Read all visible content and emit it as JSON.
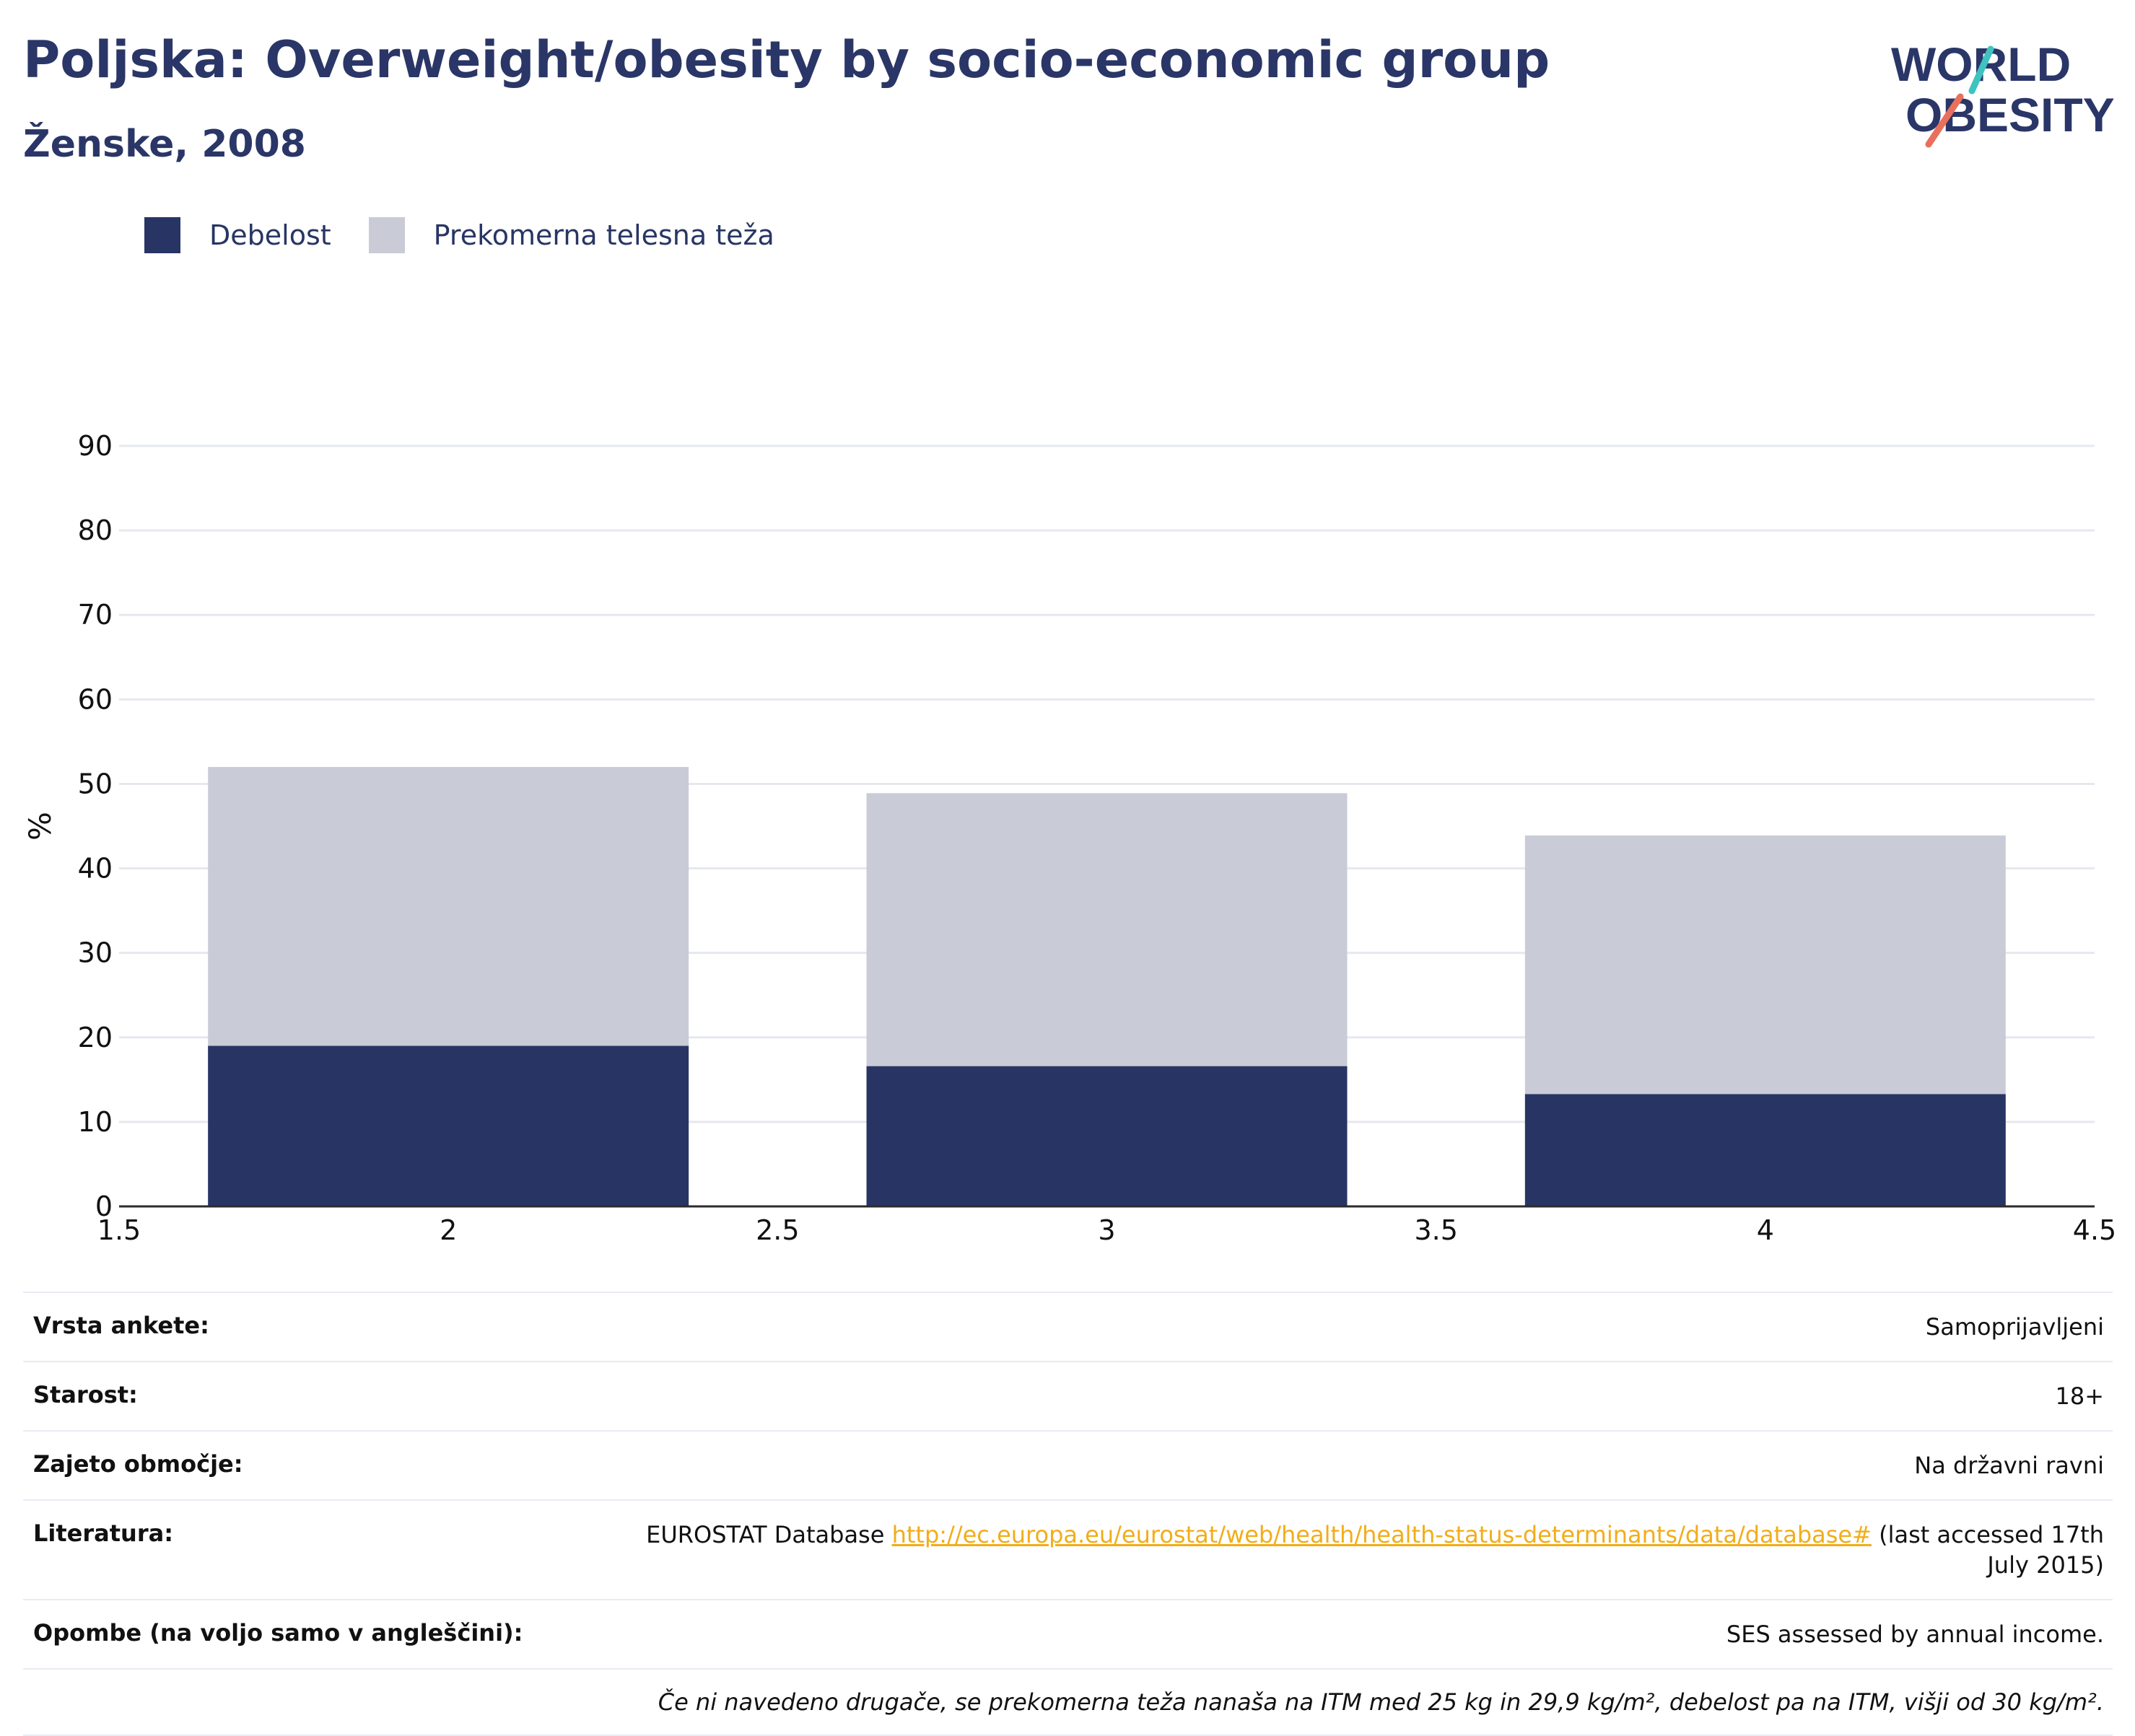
{
  "header": {
    "title": "Poljska: Overweight/obesity by socio-economic group",
    "subtitle": "Ženske, 2008"
  },
  "logo": {
    "line1": "WORLD",
    "line2": "OBESITY",
    "accent_teal": "#3ec3c0",
    "accent_coral": "#e8705c",
    "text_color": "#2a3667"
  },
  "legend": [
    {
      "name": "Debelost",
      "color": "#283564"
    },
    {
      "name": "Prekomerna telesna teža",
      "color": "#c9ccd7"
    }
  ],
  "chart_data": {
    "type": "bar",
    "stacked": true,
    "x": [
      2,
      3,
      4
    ],
    "series": [
      {
        "name": "Debelost",
        "color": "#283564",
        "values": [
          19,
          16.6,
          13.3
        ]
      },
      {
        "name": "Prekomerna telesna teža",
        "color": "#c9ccd7",
        "values": [
          33,
          32.3,
          30.6
        ]
      }
    ],
    "xlim": [
      1.5,
      4.5
    ],
    "xticks": [
      "1.5",
      "2",
      "2.5",
      "3",
      "3.5",
      "4",
      "4.5"
    ],
    "ylim": [
      0,
      90
    ],
    "yticks": [
      "0",
      "10",
      "20",
      "30",
      "40",
      "50",
      "60",
      "70",
      "80",
      "90"
    ],
    "ylabel": "%",
    "xlabel": "",
    "grid": true,
    "legend_position": "top-left"
  },
  "meta": {
    "rows": [
      {
        "label": "Vrsta ankete:",
        "value": "Samoprijavljeni"
      },
      {
        "label": "Starost:",
        "value": "18+"
      },
      {
        "label": "Zajeto območje:",
        "value": "Na državni ravni"
      }
    ],
    "literature": {
      "label": "Literatura:",
      "prefix": "EUROSTAT Database ",
      "link": "http://ec.europa.eu/eurostat/web/health/health-status-determinants/data/database#",
      "suffix": " (last accessed 17th July 2015)"
    },
    "notes": {
      "label": "Opombe (na voljo samo v angleščini):",
      "value": "SES assessed by annual income."
    },
    "footnote": "Če ni navedeno drugače, se prekomerna teža nanaša na ITM med 25 kg in 29,9 kg/m², debelost pa na ITM, višji od 30 kg/m²."
  }
}
